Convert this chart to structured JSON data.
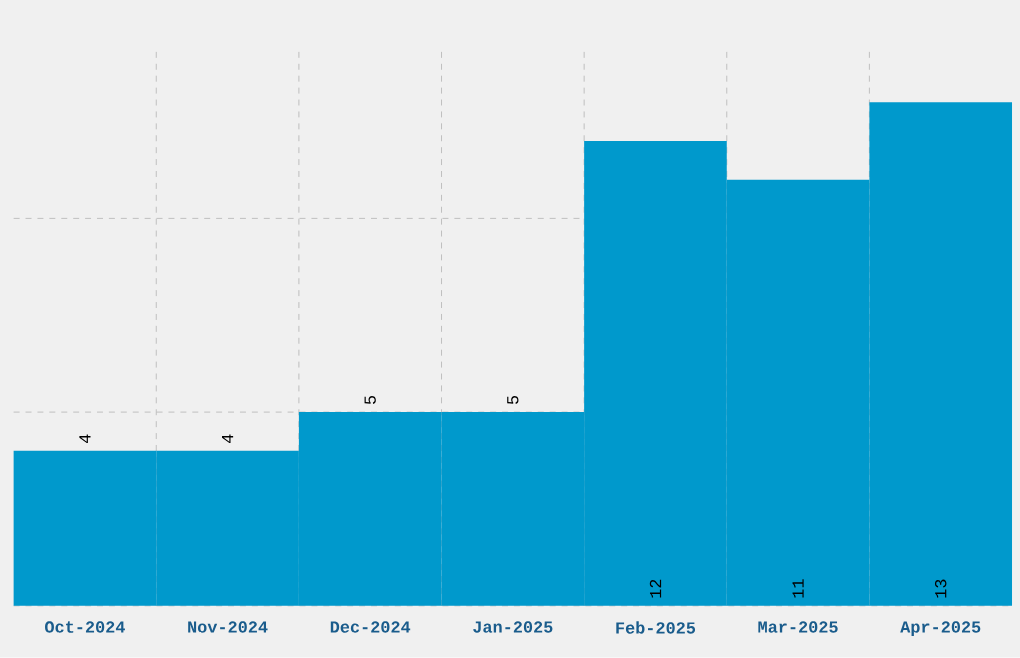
{
  "chart_data": {
    "type": "bar",
    "categories": [
      "Oct-2024",
      "Nov-2024",
      "Dec-2024",
      "Jan-2025",
      "Feb-2025",
      "Mar-2025",
      "Apr-2025"
    ],
    "values": [
      4,
      4,
      5,
      5,
      12,
      11,
      13
    ],
    "color": "#0099cc",
    "grid": true,
    "data_labels": true
  }
}
